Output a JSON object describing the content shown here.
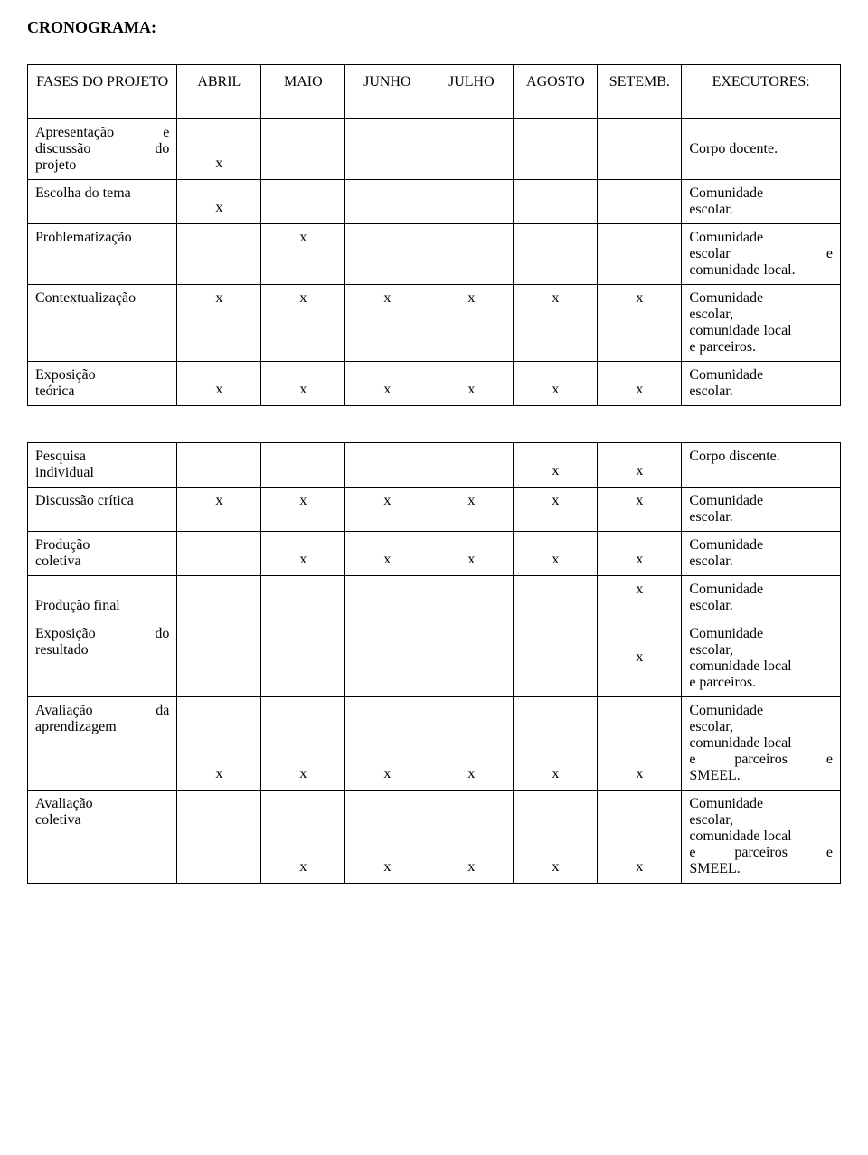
{
  "title": "CRONOGRAMA:",
  "headers": {
    "col0": "FASES DO PROJETO",
    "col1": "ABRIL",
    "col2": "MAIO",
    "col3": "JUNHO",
    "col4": "JULHO",
    "col5": "AGOSTO",
    "col6": "SETEMB.",
    "col7": "EXECUTORES:"
  },
  "x": "x",
  "table1": {
    "row0": {
      "phase_l1": "Apresentação",
      "phase_l1b": "e",
      "phase_l2": "discussão",
      "phase_l2b": "do",
      "phase_l3": "projeto",
      "exec": "Corpo docente."
    },
    "row1": {
      "phase": "Escolha do tema",
      "exec_l1_pre": " ",
      "exec_l1": "Comunidade",
      "exec_l2": "escolar."
    },
    "row2": {
      "phase": "Problematização",
      "exec_l1": "Comunidade",
      "exec_l2a": "escolar",
      "exec_l2b": "e",
      "exec_l3": "comunidade local."
    },
    "row3": {
      "phase": "Contextualização",
      "exec_l1": "Comunidade",
      "exec_l2": "escolar,",
      "exec_l3": "comunidade local",
      "exec_l4": "e parceiros."
    },
    "row4": {
      "phase_l1": "Exposição",
      "phase_l2": "teórica",
      "exec_l1": "Comunidade",
      "exec_l2": "escolar."
    }
  },
  "table2": {
    "row0": {
      "phase_l1": "Pesquisa",
      "phase_l2": "individual",
      "exec": "Corpo discente."
    },
    "row1": {
      "phase": "Discussão crítica",
      "exec_l1": "Comunidade",
      "exec_l2": "escolar."
    },
    "row2": {
      "phase_l1": "Produção",
      "phase_l2": "coletiva",
      "exec_l1": "Comunidade",
      "exec_l2": "escolar."
    },
    "row3": {
      "phase": "Produção final",
      "exec_l1": "Comunidade",
      "exec_l2": "escolar."
    },
    "row4": {
      "phase_l1": "Exposição",
      "phase_l1b": "do",
      "phase_l2": "resultado",
      "exec_l1": "Comunidade",
      "exec_l2": "escolar,",
      "exec_l3": "comunidade local",
      "exec_l4": "e parceiros."
    },
    "row5": {
      "phase_l1": "Avaliação",
      "phase_l1b": "da",
      "phase_l2": "aprendizagem",
      "exec_l1": "Comunidade",
      "exec_l2": "escolar,",
      "exec_l3": "comunidade local",
      "exec_l4a": "e",
      "exec_l4b": "parceiros",
      "exec_l4c": "e",
      "exec_l5": "SMEEL."
    },
    "row6": {
      "phase_l1": "Avaliação",
      "phase_l2": "coletiva",
      "exec_l1": "Comunidade",
      "exec_l2": "escolar,",
      "exec_l3": "comunidade local",
      "exec_l4a": "e",
      "exec_l4b": "parceiros",
      "exec_l4c": "e",
      "exec_l5": "SMEEL."
    }
  }
}
